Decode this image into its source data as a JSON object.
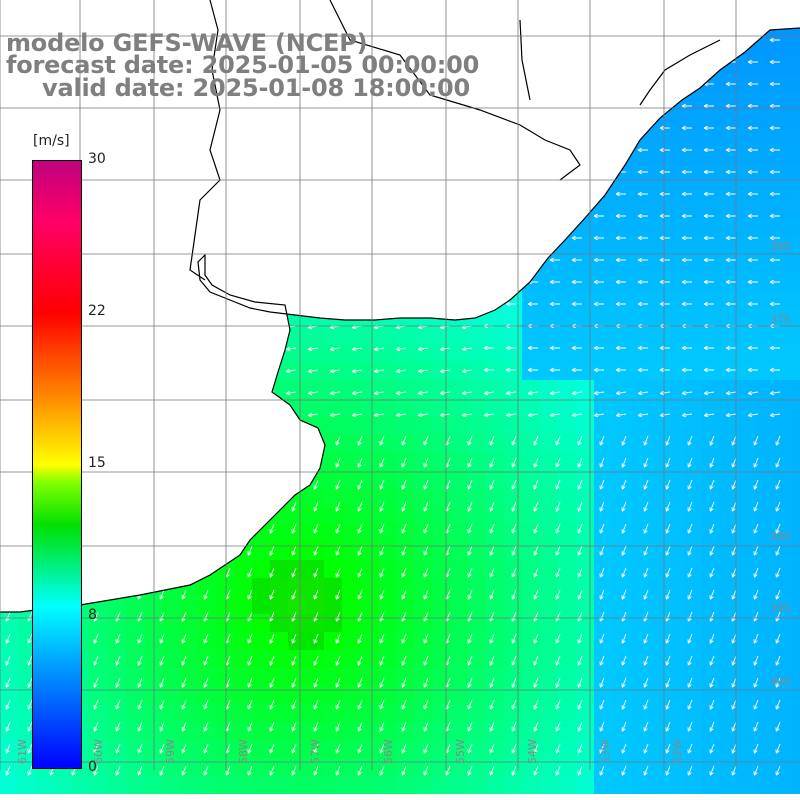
{
  "title": {
    "line1": "modelo GEFS-WAVE (NCEP)",
    "line2": "forecast date: 2025-01-05 00:00:00",
    "line3": "valid date: 2025-01-08 18:00:00"
  },
  "colorbar": {
    "unit": "[m/s]",
    "ticks": [
      "30",
      "22",
      "15",
      "8",
      "0"
    ],
    "min": 0,
    "max": 30
  },
  "grid": {
    "lat_labels": [
      "36S",
      "37S",
      "38S",
      "39S",
      "40S"
    ],
    "lon_labels": [
      "61W",
      "60W",
      "59W",
      "58W",
      "57W",
      "56W",
      "55W",
      "54W",
      "53W",
      "52W"
    ]
  },
  "colors": {
    "land": "#ffffff",
    "coast": "#000000",
    "grid": "#888888",
    "title": "#7f7f7f",
    "arrow": "#ffffff"
  }
}
